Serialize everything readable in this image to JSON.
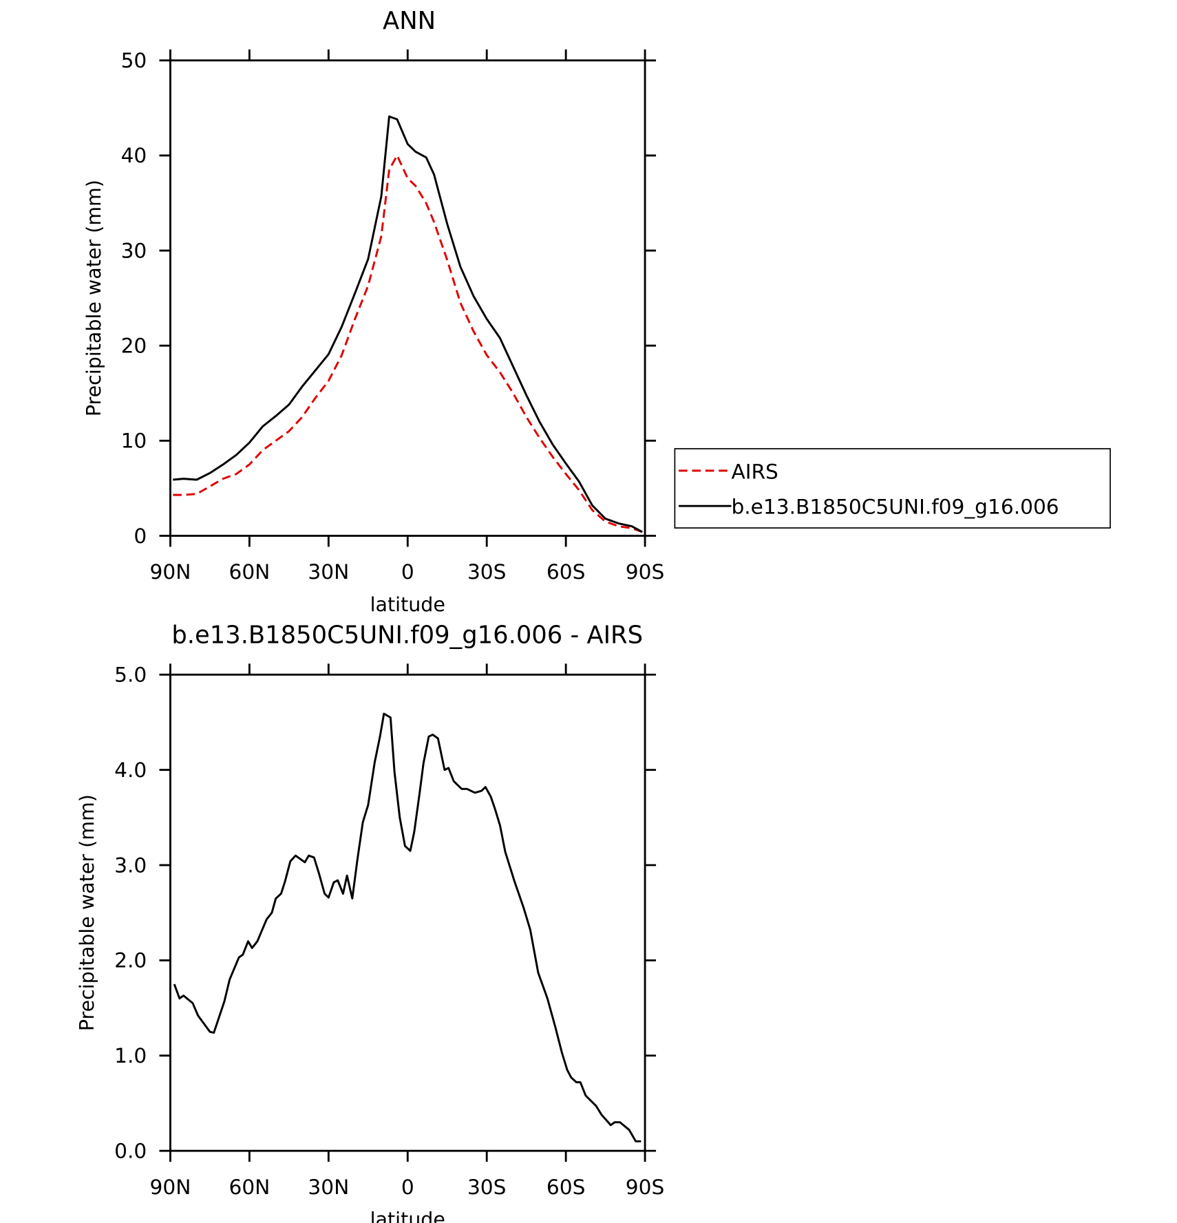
{
  "chart_data": [
    {
      "type": "line",
      "title": "ANN",
      "xlabel": "latitude",
      "ylabel": "Precipitable water (mm)",
      "x": [
        89,
        85,
        80,
        75,
        70,
        65,
        60,
        55,
        50,
        45,
        40,
        35,
        30,
        25,
        20,
        15,
        10,
        7,
        4,
        0,
        -3,
        -7,
        -10,
        -15,
        -20,
        -25,
        -30,
        -35,
        -40,
        -45,
        -50,
        -55,
        -60,
        -65,
        -70,
        -75,
        -80,
        -85,
        -89
      ],
      "series": [
        {
          "name": "AIRS",
          "color": "#e00000",
          "dash": "dashed",
          "values": [
            4.3,
            4.3,
            4.4,
            5.2,
            6.0,
            6.5,
            7.5,
            9.0,
            10.0,
            11.0,
            12.5,
            14.5,
            16.3,
            19.0,
            22.8,
            26.3,
            31.5,
            38.5,
            40.0,
            37.6,
            36.8,
            35.0,
            33.0,
            29.0,
            24.5,
            21.5,
            19.0,
            17.2,
            15.0,
            12.5,
            10.3,
            8.3,
            6.5,
            4.8,
            2.7,
            1.5,
            1.0,
            0.8,
            0.4
          ]
        },
        {
          "name": "b.e13.B1850C5UNI.f09_g16.006",
          "color": "#000000",
          "dash": "solid",
          "values": [
            5.9,
            6.0,
            5.9,
            6.6,
            7.5,
            8.5,
            9.8,
            11.5,
            12.6,
            13.8,
            15.7,
            17.4,
            19.1,
            22.0,
            25.5,
            29.1,
            35.7,
            44.1,
            43.8,
            41.2,
            40.4,
            39.8,
            38.0,
            32.8,
            28.3,
            25.2,
            22.8,
            20.8,
            17.8,
            14.8,
            12.0,
            9.6,
            7.6,
            5.7,
            3.2,
            1.8,
            1.3,
            1.0,
            0.4
          ]
        }
      ],
      "xlim": [
        90,
        -90
      ],
      "xticks": [
        {
          "value": 90,
          "label": "90N"
        },
        {
          "value": 60,
          "label": "60N"
        },
        {
          "value": 30,
          "label": "30N"
        },
        0,
        {
          "value": -30,
          "label": "30S"
        },
        {
          "value": -60,
          "label": "60S"
        },
        {
          "value": -90,
          "label": "90S"
        }
      ],
      "ylim": [
        0,
        50
      ],
      "yticks": [
        0,
        10,
        20,
        30,
        40,
        50
      ],
      "legend": "outside-right"
    },
    {
      "type": "line",
      "title": "b.e13.B1850C5UNI.f09_g16.006 - AIRS",
      "xlabel": "latitude",
      "ylabel": "Precipitable water (mm)",
      "x": [
        88.5,
        86.5,
        85,
        81.5,
        79.5,
        75,
        73.5,
        69.5,
        67.5,
        64,
        62.5,
        60.5,
        59,
        57,
        53.5,
        51.5,
        50,
        48,
        46.5,
        44.5,
        42.5,
        39,
        37.5,
        35.5,
        33.5,
        31.5,
        30,
        28,
        26.5,
        24.5,
        23,
        21,
        19,
        17,
        15,
        12.5,
        10.5,
        9,
        6.5,
        5,
        3,
        1,
        -1,
        -2.5,
        -4.5,
        -6,
        -8,
        -9.5,
        -11.5,
        -14,
        -15.5,
        -17.5,
        -20.5,
        -22.5,
        -25.5,
        -28,
        -29.5,
        -31.5,
        -33,
        -35,
        -37,
        -40.5,
        -44,
        -46.5,
        -49.5,
        -53,
        -56,
        -58.5,
        -60.5,
        -62,
        -64,
        -65.5,
        -67.5,
        -71.5,
        -73.5,
        -77,
        -78.5,
        -80.5,
        -84,
        -86.5,
        -88.5
      ],
      "values": [
        1.75,
        1.6,
        1.63,
        1.55,
        1.42,
        1.25,
        1.24,
        1.57,
        1.8,
        2.03,
        2.06,
        2.2,
        2.13,
        2.2,
        2.43,
        2.5,
        2.65,
        2.7,
        2.83,
        3.04,
        3.1,
        3.03,
        3.1,
        3.08,
        2.9,
        2.7,
        2.66,
        2.82,
        2.84,
        2.7,
        2.89,
        2.65,
        3.07,
        3.45,
        3.63,
        4.08,
        4.35,
        4.59,
        4.55,
        3.98,
        3.5,
        3.2,
        3.15,
        3.35,
        3.75,
        4.07,
        4.35,
        4.37,
        4.33,
        4.0,
        4.02,
        3.88,
        3.8,
        3.8,
        3.76,
        3.78,
        3.82,
        3.72,
        3.6,
        3.42,
        3.14,
        2.83,
        2.55,
        2.32,
        1.87,
        1.6,
        1.3,
        1.03,
        0.85,
        0.77,
        0.72,
        0.72,
        0.58,
        0.47,
        0.38,
        0.27,
        0.3,
        0.3,
        0.22,
        0.1,
        0.1
      ],
      "color": "#000000",
      "xlim": [
        90,
        -90
      ],
      "xticks": [
        {
          "value": 90,
          "label": "90N"
        },
        {
          "value": 60,
          "label": "60N"
        },
        {
          "value": 30,
          "label": "30N"
        },
        0,
        {
          "value": -30,
          "label": "30S"
        },
        {
          "value": -60,
          "label": "60S"
        },
        {
          "value": -90,
          "label": "90S"
        }
      ],
      "ylim": [
        0,
        5
      ],
      "yticks": [
        {
          "value": 0,
          "label": "0.0"
        },
        {
          "value": 1,
          "label": "1.0"
        },
        {
          "value": 2,
          "label": "2.0"
        },
        {
          "value": 3,
          "label": "3.0"
        },
        {
          "value": 4,
          "label": "4.0"
        },
        {
          "value": 5,
          "label": "5.0"
        }
      ]
    }
  ]
}
